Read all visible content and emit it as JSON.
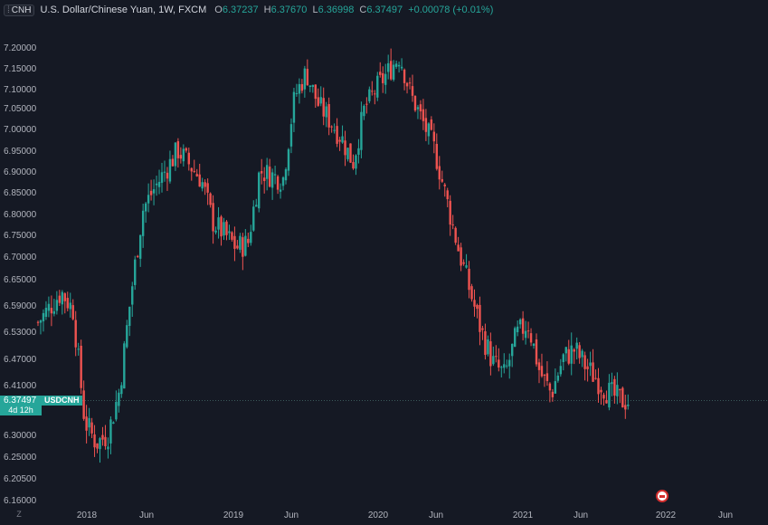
{
  "header": {
    "symbol_badge": "CNH",
    "title": "U.S. Dollar/Chinese Yuan, 1W, FXCM",
    "open_label": "O",
    "open": "6.37237",
    "high_label": "H",
    "high": "6.37670",
    "low_label": "L",
    "low": "6.36998",
    "close_label": "C",
    "close": "6.37497",
    "change": "+0.00078 (+0.01%)"
  },
  "price_tag": {
    "price": "6.37497",
    "symbol": "USDCNH",
    "countdown": "4d 12h"
  },
  "corner_label": "Z",
  "colors": {
    "background": "#151924",
    "up": "#26a69a",
    "down": "#ef5350",
    "text": "#b2b5be"
  },
  "chart_data": {
    "type": "candlestick",
    "title": "U.S. Dollar/Chinese Yuan, 1W, FXCM",
    "y_ticks": [
      "7.20000",
      "7.15000",
      "7.10000",
      "7.05000",
      "7.00000",
      "6.95000",
      "6.90000",
      "6.85000",
      "6.80000",
      "6.75000",
      "6.70000",
      "6.65000",
      "6.59000",
      "6.53000",
      "6.47000",
      "6.41000",
      "6.30000",
      "6.25000",
      "6.20500",
      "6.16000"
    ],
    "x_ticks": [
      "2018",
      "Jun",
      "2019",
      "Jun",
      "2020",
      "Jun",
      "2021",
      "Jun",
      "2022",
      "Jun"
    ],
    "x_range": [
      "2017-10",
      "2022-08"
    ],
    "last_price": 6.37497,
    "path": [
      [
        "2017-10",
        6.55
      ],
      [
        "2017-12",
        6.62
      ],
      [
        "2018-01",
        6.58
      ],
      [
        "2018-02",
        6.33
      ],
      [
        "2018-03",
        6.28
      ],
      [
        "2018-04",
        6.3
      ],
      [
        "2018-05",
        6.4
      ],
      [
        "2018-06",
        6.62
      ],
      [
        "2018-07",
        6.81
      ],
      [
        "2018-08",
        6.86
      ],
      [
        "2018-10",
        6.95
      ],
      [
        "2018-12",
        6.88
      ],
      [
        "2019-01",
        6.78
      ],
      [
        "2019-03",
        6.72
      ],
      [
        "2019-04",
        6.73
      ],
      [
        "2019-05",
        6.9
      ],
      [
        "2019-07",
        6.88
      ],
      [
        "2019-08",
        7.08
      ],
      [
        "2019-09",
        7.14
      ],
      [
        "2019-10",
        7.06
      ],
      [
        "2019-12",
        6.98
      ],
      [
        "2020-01",
        6.92
      ],
      [
        "2020-02",
        7.05
      ],
      [
        "2020-03",
        7.1
      ],
      [
        "2020-05",
        7.18
      ],
      [
        "2020-06",
        7.08
      ],
      [
        "2020-08",
        6.95
      ],
      [
        "2020-10",
        6.72
      ],
      [
        "2020-12",
        6.53
      ],
      [
        "2021-01",
        6.46
      ],
      [
        "2021-02",
        6.43
      ],
      [
        "2021-03",
        6.52
      ],
      [
        "2021-04",
        6.55
      ],
      [
        "2021-05",
        6.44
      ],
      [
        "2021-06",
        6.39
      ],
      [
        "2021-07",
        6.47
      ],
      [
        "2021-08",
        6.49
      ],
      [
        "2021-09",
        6.45
      ],
      [
        "2021-10",
        6.42
      ],
      [
        "2021-11",
        6.39
      ],
      [
        "2021-12",
        6.375
      ]
    ]
  }
}
